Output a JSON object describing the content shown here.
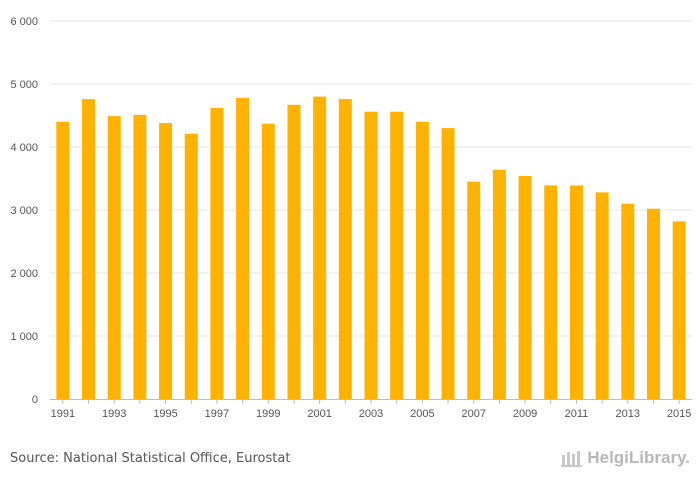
{
  "chart_data": {
    "type": "bar",
    "categories": [
      "1991",
      "1992",
      "1993",
      "1994",
      "1995",
      "1996",
      "1997",
      "1998",
      "1999",
      "2000",
      "2001",
      "2002",
      "2003",
      "2004",
      "2005",
      "2006",
      "2007",
      "2008",
      "2009",
      "2010",
      "2011",
      "2012",
      "2013",
      "2014",
      "2015"
    ],
    "x_tick_labels": [
      "1991",
      "1993",
      "1995",
      "1997",
      "1999",
      "2001",
      "2003",
      "2005",
      "2007",
      "2009",
      "2011",
      "2013",
      "2015"
    ],
    "values": [
      4400,
      4760,
      4490,
      4510,
      4380,
      4210,
      4620,
      4780,
      4370,
      4670,
      4800,
      4760,
      4560,
      4560,
      4400,
      4300,
      3450,
      3640,
      3540,
      3390,
      3390,
      3280,
      3100,
      3020,
      2820
    ],
    "y_tick_labels": [
      "0",
      "1 000",
      "2 000",
      "3 000",
      "4 000",
      "5 000",
      "6 000"
    ],
    "ylim": [
      0,
      6000
    ],
    "ytick_step": 1000,
    "grid": true,
    "bar_color": "#ffb300",
    "title": "",
    "xlabel": "",
    "ylabel": ""
  },
  "footer": {
    "source": "Source: National Statistical Office, Eurostat",
    "logo_text": "HelgiLibrary."
  }
}
